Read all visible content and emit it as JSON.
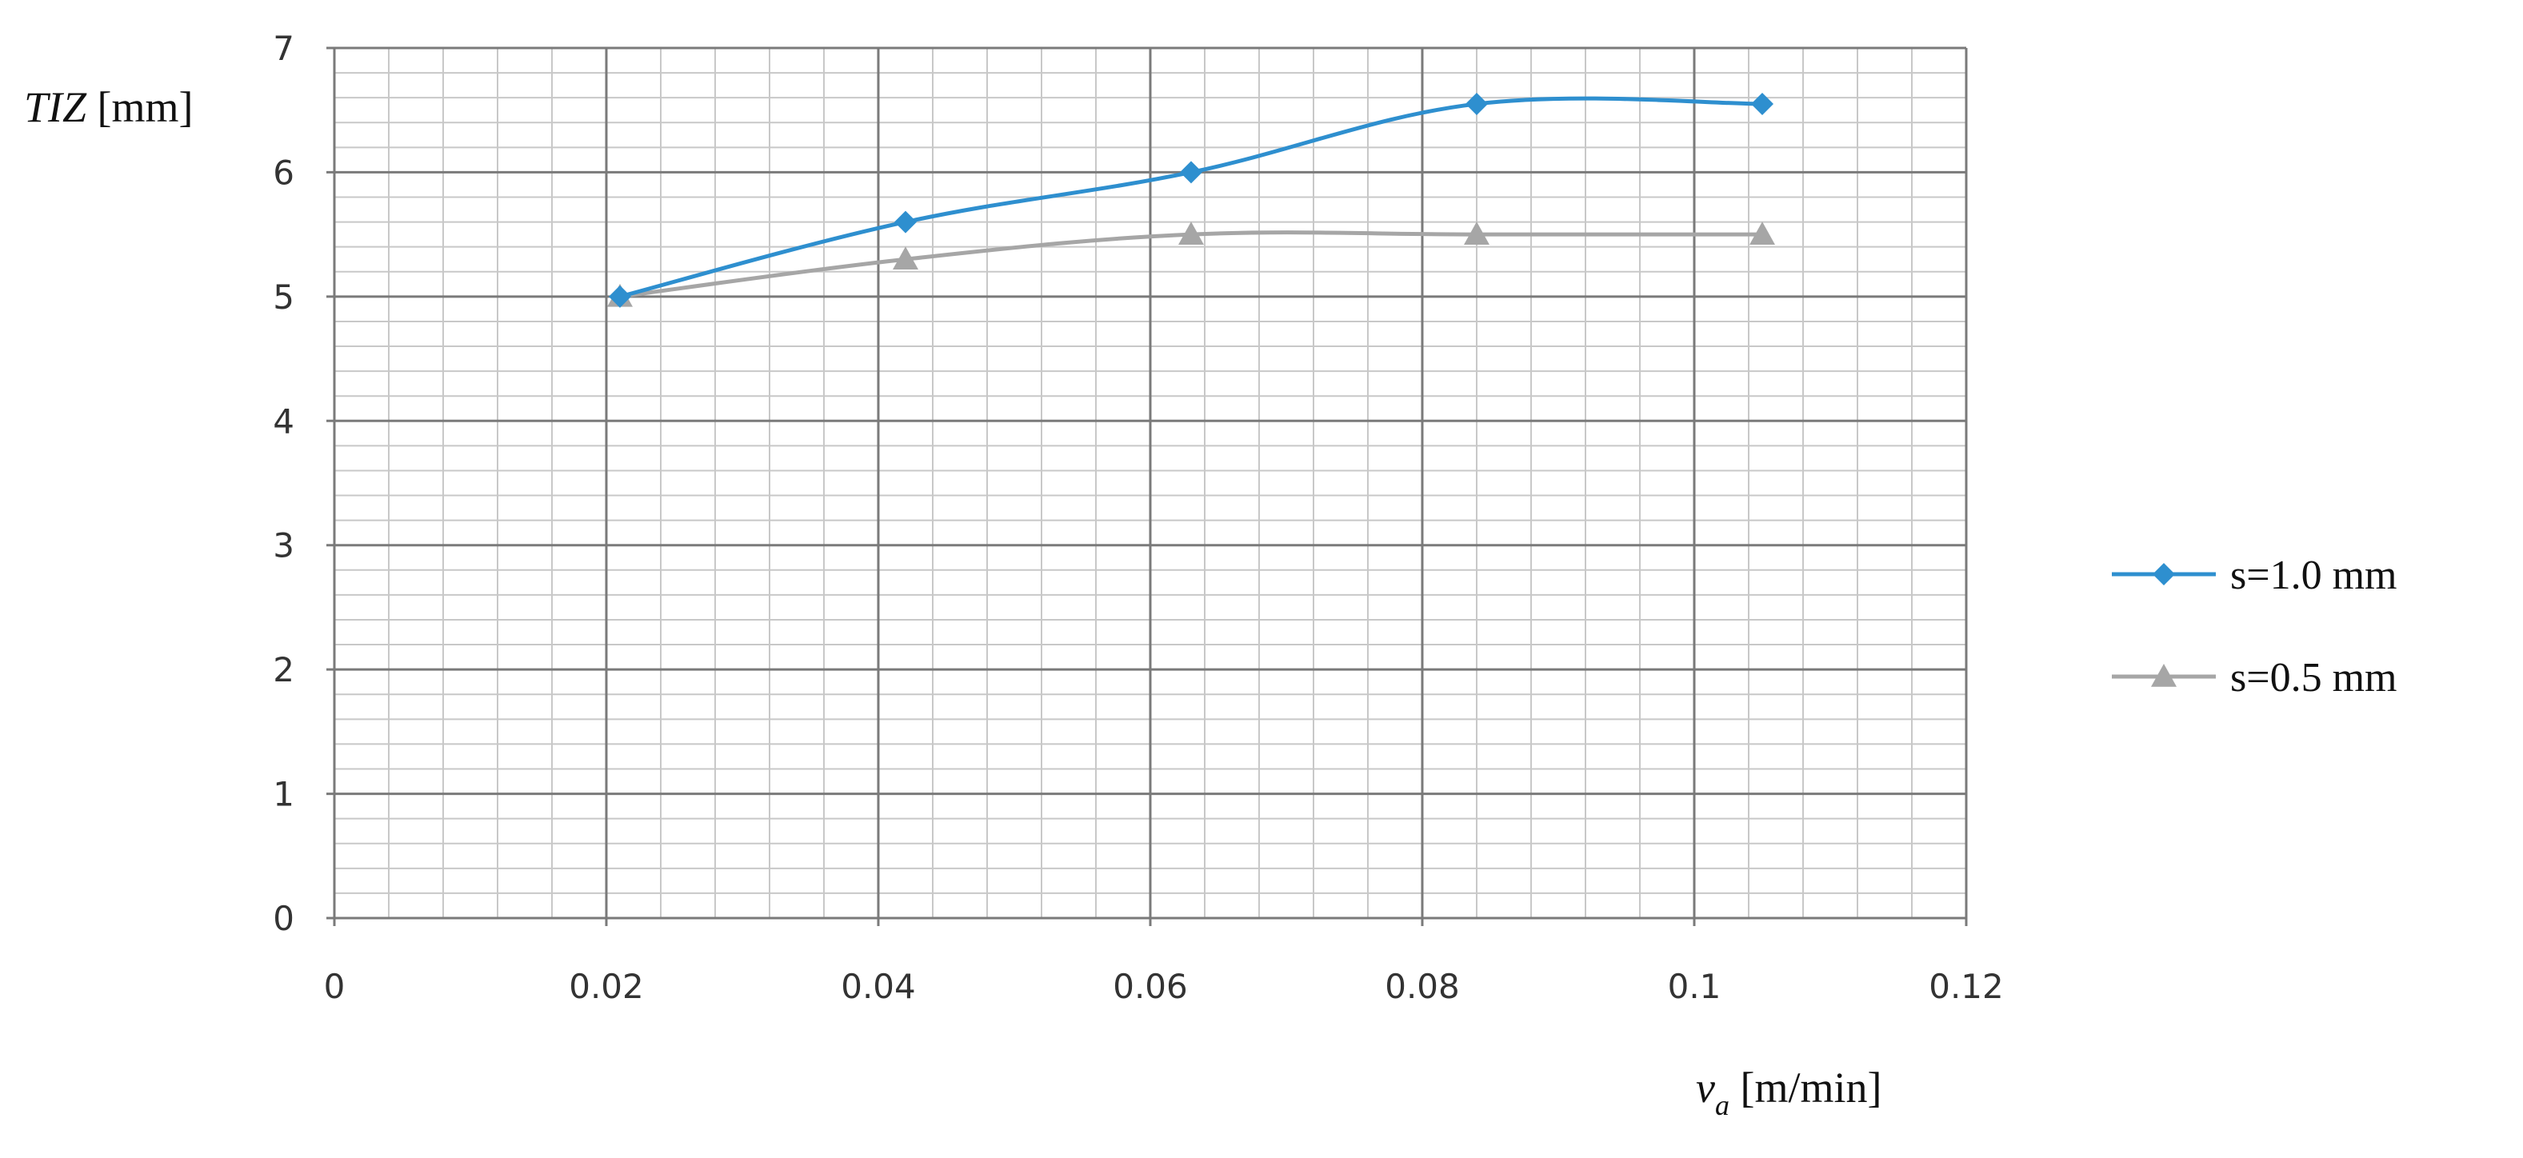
{
  "chart_data": {
    "type": "line",
    "ylabel": {
      "italic": "TIZ",
      "rest": " [mm]"
    },
    "xlabel": {
      "italic": "v",
      "subscript": "a",
      "rest": " [m/min]"
    },
    "xlim": [
      0,
      0.12
    ],
    "ylim": [
      0,
      7
    ],
    "x_ticks": [
      0,
      0.02,
      0.04,
      0.06,
      0.08,
      0.1,
      0.12
    ],
    "x_tick_labels": [
      "0",
      "0.02",
      "0.04",
      "0.06",
      "0.08",
      "0.1",
      "0.12"
    ],
    "y_ticks": [
      0,
      1,
      2,
      3,
      4,
      5,
      6,
      7
    ],
    "y_tick_labels": [
      "0",
      "1",
      "2",
      "3",
      "4",
      "5",
      "6",
      "7"
    ],
    "minor_x_step": 0.004,
    "minor_y_step": 0.2,
    "grid": true,
    "legend_position": "right",
    "series": [
      {
        "name": "s=1.0 mm",
        "color": "#2e8fcf",
        "marker": "diamond",
        "x": [
          0.021,
          0.042,
          0.063,
          0.084,
          0.105
        ],
        "y": [
          5.0,
          5.6,
          6.0,
          6.55,
          6.55
        ]
      },
      {
        "name": "s=0.5 mm",
        "color": "#a6a6a6",
        "marker": "triangle",
        "x": [
          0.021,
          0.042,
          0.063,
          0.084,
          0.105
        ],
        "y": [
          5.0,
          5.3,
          5.5,
          5.5,
          5.5
        ]
      }
    ]
  }
}
